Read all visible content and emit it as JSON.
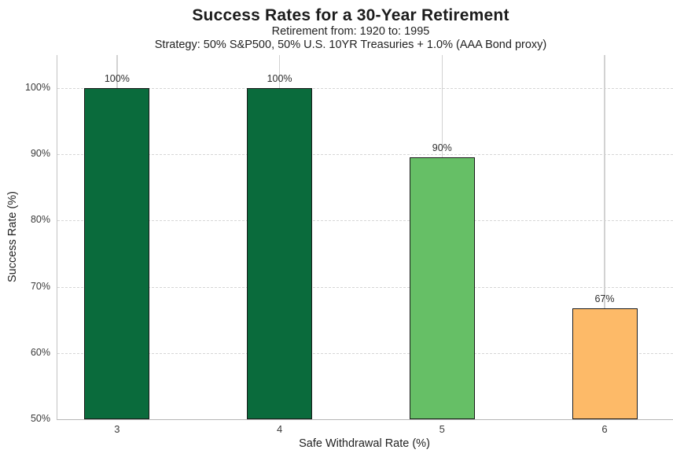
{
  "chart": {
    "title": "Success Rates for a 30-Year Retirement",
    "subtitle1": "Retirement from: 1920 to: 1995",
    "subtitle2": "Strategy: 50% S&P500, 50% U.S. 10YR Treasuries + 1.0% (AAA Bond proxy)",
    "xlabel": "Safe Withdrawal Rate (%)",
    "ylabel": "Success Rate (%)"
  },
  "chart_data": {
    "type": "bar",
    "title": "Success Rates for a 30-Year Retirement",
    "subtitle": [
      "Retirement from: 1920 to: 1995",
      "Strategy: 50% S&P500, 50% U.S. 10YR Treasuries + 1.0% (AAA Bond proxy)"
    ],
    "xlabel": "Safe Withdrawal Rate (%)",
    "ylabel": "Success Rate (%)",
    "categories": [
      "3",
      "4",
      "5",
      "6"
    ],
    "values": [
      100,
      100,
      89.5,
      66.7
    ],
    "bar_labels": [
      "100%",
      "100%",
      "90%",
      "67%"
    ],
    "bar_colors": [
      "#0a6b3c",
      "#0a6b3c",
      "#66bf66",
      "#fdba68"
    ],
    "bar_edge_color": "#1a1a1a",
    "ylim": [
      50,
      105
    ],
    "yticks": [
      50,
      60,
      70,
      80,
      90,
      100
    ],
    "ytick_labels": [
      "50%",
      "60%",
      "70%",
      "80%",
      "90%",
      "100%"
    ],
    "grid": {
      "horizontal": "dashed",
      "vertical": "solid",
      "shown": true
    },
    "legend": "none"
  }
}
